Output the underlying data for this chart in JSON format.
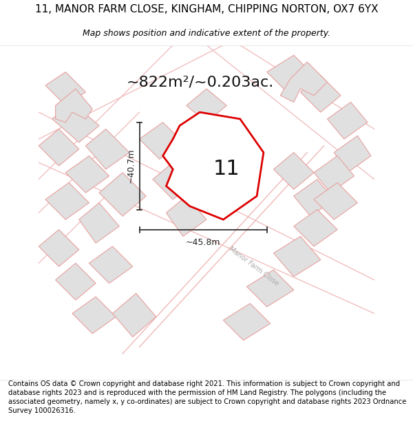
{
  "title": "11, MANOR FARM CLOSE, KINGHAM, CHIPPING NORTON, OX7 6YX",
  "subtitle": "Map shows position and indicative extent of the property.",
  "area_text": "~822m²/~0.203ac.",
  "label_11": "11",
  "dim_horiz": "~45.8m",
  "dim_vert": "~40.7m",
  "footer": "Contains OS data © Crown copyright and database right 2021. This information is subject to Crown copyright and database rights 2023 and is reproduced with the permission of HM Land Registry. The polygons (including the associated geometry, namely x, y co-ordinates) are subject to Crown copyright and database rights 2023 Ordnance Survey 100026316.",
  "bg_color": "#ffffff",
  "map_bg": "#ffffff",
  "plot_fill": "#ffffff",
  "plot_edge": "#dd0000",
  "bldg_fill": "#e0e0e0",
  "bldg_edge": "#e8a0a0",
  "road_edge": "#f0b8b8",
  "dim_color": "#222222",
  "road_label_color": "#aaaaaa",
  "title_fontsize": 11,
  "subtitle_fontsize": 9,
  "area_fontsize": 16,
  "label_fontsize": 22,
  "dim_fontsize": 9,
  "footer_fontsize": 7.2,
  "road_label": "Manor Farm Close",
  "road_label_rotation": -37
}
